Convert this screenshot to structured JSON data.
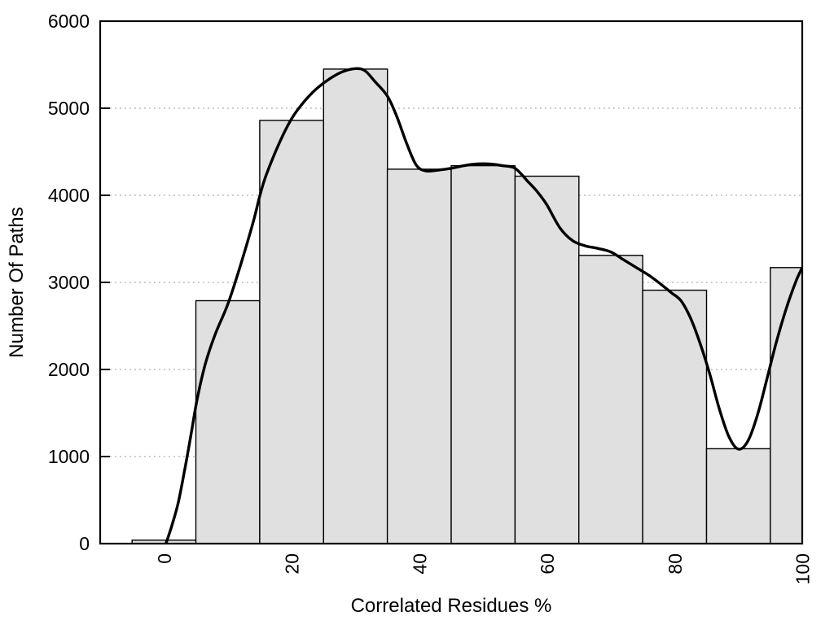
{
  "chart_data": {
    "type": "bar",
    "title": "",
    "xlabel": "Correlated Residues %",
    "ylabel": "Number Of Paths",
    "xlim": [
      -10,
      100
    ],
    "ylim": [
      0,
      6000
    ],
    "xticks": [
      0,
      20,
      40,
      60,
      80,
      100
    ],
    "yticks": [
      0,
      1000,
      2000,
      3000,
      4000,
      5000,
      6000
    ],
    "grid": "horizontal dotted gridlines at 1000-5000",
    "legend_position": "none",
    "colors": {
      "bar_fill": "#e0e0e0",
      "bar_edge": "#000000",
      "curve": "#000000",
      "grid": "#b5b5b5",
      "text": "#000000",
      "background": "#ffffff"
    },
    "bars": {
      "bin_width": 10,
      "centers": [
        0,
        10,
        20,
        30,
        40,
        50,
        60,
        70,
        80,
        90,
        100
      ],
      "values": [
        40,
        2790,
        4860,
        5450,
        4300,
        4340,
        4220,
        3310,
        2910,
        1090,
        3170
      ],
      "note": "first bin spans -5..5, last bin clipped at x=100"
    },
    "curve": {
      "style": "smooth trend line over histogram",
      "points": [
        [
          0.3,
          0
        ],
        [
          1.2,
          200
        ],
        [
          2.2,
          460
        ],
        [
          3.2,
          830
        ],
        [
          4.2,
          1240
        ],
        [
          5.2,
          1660
        ],
        [
          6.5,
          2070
        ],
        [
          8,
          2400
        ],
        [
          10,
          2750
        ],
        [
          12,
          3200
        ],
        [
          14,
          3700
        ],
        [
          15,
          3990
        ],
        [
          16,
          4230
        ],
        [
          18,
          4590
        ],
        [
          20,
          4880
        ],
        [
          22,
          5080
        ],
        [
          24,
          5230
        ],
        [
          26,
          5340
        ],
        [
          28,
          5420
        ],
        [
          30,
          5455
        ],
        [
          31.5,
          5430
        ],
        [
          33,
          5310
        ],
        [
          35,
          5140
        ],
        [
          36.5,
          4900
        ],
        [
          38,
          4600
        ],
        [
          39.5,
          4350
        ],
        [
          41,
          4280
        ],
        [
          43,
          4290
        ],
        [
          45,
          4310
        ],
        [
          47,
          4340
        ],
        [
          49,
          4360
        ],
        [
          51,
          4360
        ],
        [
          53,
          4340
        ],
        [
          55,
          4310
        ],
        [
          57,
          4160
        ],
        [
          58.5,
          4040
        ],
        [
          60,
          3890
        ],
        [
          62,
          3630
        ],
        [
          64,
          3480
        ],
        [
          66,
          3420
        ],
        [
          68,
          3390
        ],
        [
          70,
          3350
        ],
        [
          72,
          3260
        ],
        [
          74,
          3170
        ],
        [
          76,
          3080
        ],
        [
          78,
          2970
        ],
        [
          79.5,
          2880
        ],
        [
          81,
          2790
        ],
        [
          82.5,
          2590
        ],
        [
          84,
          2300
        ],
        [
          85.5,
          1950
        ],
        [
          87,
          1550
        ],
        [
          88.5,
          1230
        ],
        [
          90,
          1085
        ],
        [
          91.5,
          1180
        ],
        [
          93,
          1480
        ],
        [
          94.5,
          1900
        ],
        [
          96,
          2330
        ],
        [
          97.5,
          2700
        ],
        [
          99,
          3010
        ],
        [
          100,
          3170
        ]
      ]
    }
  }
}
